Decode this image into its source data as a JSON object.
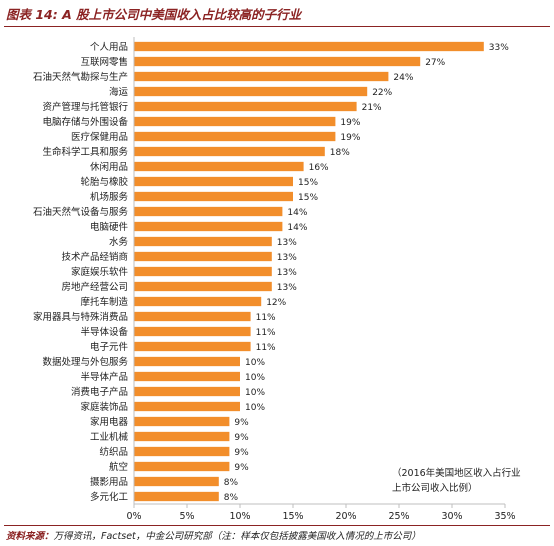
{
  "page": {
    "title": "图表 14: A 股上市公司中美国收入占比较高的子行业",
    "source_label": "资料来源：",
    "source_text": "万得资讯，Factset，中金公司研究部（注：样本仅包括披露美国收入情况的上市公司）",
    "annotation_line1": "（2016年美国地区收入占行业",
    "annotation_line2": "上市公司收入比例）"
  },
  "colors": {
    "bar": "#f28e2b",
    "title": "#8b2323",
    "rule": "#8b2323",
    "axis": "#bfbfbf"
  },
  "chart_data": {
    "type": "bar",
    "orientation": "horizontal",
    "title": "图表 14: A 股上市公司中美国收入占比较高的子行业",
    "xlabel": "",
    "ylabel": "",
    "xlim": [
      0,
      35
    ],
    "x_ticks": [
      "0%",
      "5%",
      "10%",
      "15%",
      "20%",
      "25%",
      "30%",
      "35%"
    ],
    "grid": false,
    "legend": "none",
    "categories": [
      "个人用品",
      "互联网零售",
      "石油天然气勘探与生产",
      "海运",
      "资产管理与托管银行",
      "电脑存储与外围设备",
      "医疗保健用品",
      "生命科学工具和服务",
      "休闲用品",
      "轮胎与橡胶",
      "机场服务",
      "石油天然气设备与服务",
      "电脑硬件",
      "水务",
      "技术产品经销商",
      "家庭娱乐软件",
      "房地产经营公司",
      "摩托车制造",
      "家用器具与特殊消费品",
      "半导体设备",
      "电子元件",
      "数据处理与外包服务",
      "半导体产品",
      "消费电子产品",
      "家庭装饰品",
      "家用电器",
      "工业机械",
      "纺织品",
      "航空",
      "摄影用品",
      "多元化工"
    ],
    "values": [
      33,
      27,
      24,
      22,
      21,
      19,
      19,
      18,
      16,
      15,
      15,
      14,
      14,
      13,
      13,
      13,
      13,
      12,
      11,
      11,
      11,
      10,
      10,
      10,
      10,
      9,
      9,
      9,
      9,
      8,
      8
    ],
    "value_labels": [
      "33%",
      "27%",
      "24%",
      "22%",
      "21%",
      "19%",
      "19%",
      "18%",
      "16%",
      "15%",
      "15%",
      "14%",
      "14%",
      "13%",
      "13%",
      "13%",
      "13%",
      "12%",
      "11%",
      "11%",
      "11%",
      "10%",
      "10%",
      "10%",
      "10%",
      "9%",
      "9%",
      "9%",
      "9%",
      "8%",
      "8%"
    ]
  }
}
